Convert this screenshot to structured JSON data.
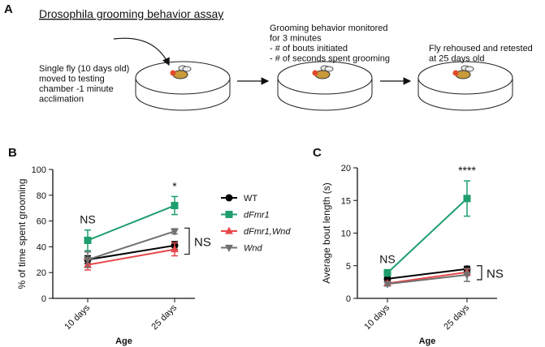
{
  "panel_a": {
    "label": "A",
    "title": "Drosophila grooming behavior assay",
    "step1": [
      "Single fly (10 days old)",
      "moved to testing",
      "chamber -1 minute",
      "acclimation"
    ],
    "step2": [
      "Grooming behavior monitored",
      "for 3 minutes",
      " - # of bouts initiated",
      " - # of seconds spent grooming"
    ],
    "step3": [
      "Fly rehoused and retested",
      "at 25 days old"
    ]
  },
  "chart_data": [
    {
      "type": "line",
      "panel": "B",
      "x_label": "Age",
      "y_label": "% of time spent grooming",
      "categories": [
        "10 days",
        "25 days"
      ],
      "ylim": [
        0,
        100
      ],
      "yticks": [
        0,
        20,
        40,
        60,
        80,
        100
      ],
      "legend": "right",
      "series": [
        {
          "name": "WT",
          "color": "#000000",
          "marker": "circle",
          "italic": false,
          "values": [
            30,
            41
          ],
          "errors": [
            3,
            3
          ]
        },
        {
          "name": "dFmr1",
          "color": "#1f9e6e",
          "marker": "square",
          "italic": true,
          "values": [
            45,
            72
          ],
          "errors": [
            8,
            7
          ]
        },
        {
          "name": "dFmr1,Wnd",
          "color": "#e8474b",
          "marker": "triangle-up",
          "italic": true,
          "values": [
            26,
            38
          ],
          "errors": [
            4,
            5
          ]
        },
        {
          "name": "Wnd",
          "color": "#707070",
          "marker": "triangle-down",
          "italic": true,
          "values": [
            30,
            52
          ],
          "errors": [
            6,
            2
          ]
        }
      ],
      "annotations": [
        "NS",
        "*",
        "NS"
      ]
    },
    {
      "type": "line",
      "panel": "C",
      "x_label": "Age",
      "y_label": "Average bout length (s)",
      "categories": [
        "10 days",
        "25 days"
      ],
      "ylim": [
        0,
        20
      ],
      "yticks": [
        0,
        5,
        10,
        15,
        20
      ],
      "series": [
        {
          "name": "WT",
          "color": "#000000",
          "marker": "circle",
          "values": [
            3.0,
            4.5
          ],
          "errors": [
            0.4,
            0.4
          ]
        },
        {
          "name": "dFmr1",
          "color": "#1f9e6e",
          "marker": "square",
          "values": [
            3.9,
            15.3
          ],
          "errors": [
            0.5,
            2.7
          ]
        },
        {
          "name": "dFmr1,Wnd",
          "color": "#e8474b",
          "marker": "triangle-up",
          "values": [
            2.3,
            4.0
          ],
          "errors": [
            0.3,
            0.5
          ]
        },
        {
          "name": "Wnd",
          "color": "#707070",
          "marker": "triangle-down",
          "values": [
            2.2,
            3.6
          ],
          "errors": [
            0.3,
            1.0
          ]
        }
      ],
      "annotations": [
        "NS",
        "****",
        "NS"
      ]
    }
  ]
}
